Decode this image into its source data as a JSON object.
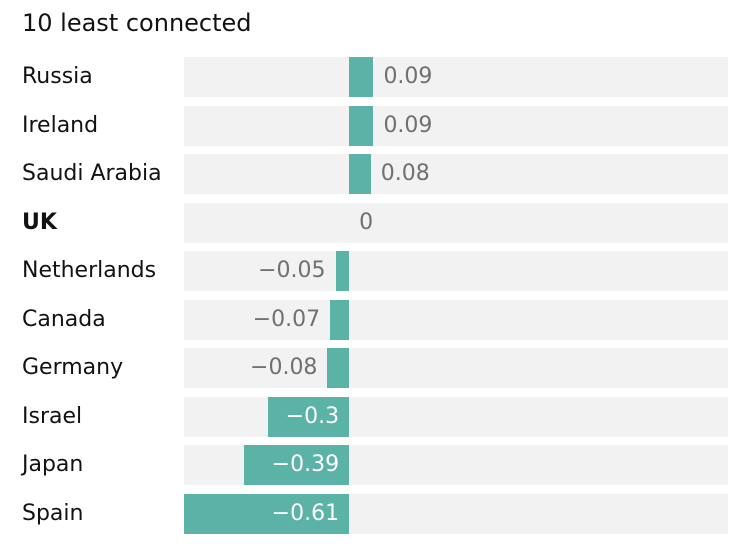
{
  "chart_data": {
    "type": "bar",
    "orientation": "horizontal",
    "title": "10 least connected",
    "categories": [
      "Russia",
      "Ireland",
      "Saudi Arabia",
      "UK",
      "Netherlands",
      "Canada",
      "Germany",
      "Israel",
      "Japan",
      "Spain"
    ],
    "values": [
      0.09,
      0.09,
      0.08,
      0,
      -0.05,
      -0.07,
      -0.08,
      -0.3,
      -0.39,
      -0.61
    ],
    "value_labels": [
      "0.09",
      "0.09",
      "0.08",
      "0",
      "−0.05",
      "−0.07",
      "−0.08",
      "−0.3",
      "−0.39",
      "−0.61"
    ],
    "highlighted_category": "UK",
    "xlim": [
      -0.61,
      1.4
    ],
    "xlabel": "",
    "ylabel": "",
    "grid": false,
    "colors": {
      "bar": "#5bb3a8",
      "track": "#f2f2f2",
      "value_text": "#707070",
      "value_text_inside": "#ffffff",
      "label_text": "#121212"
    }
  }
}
